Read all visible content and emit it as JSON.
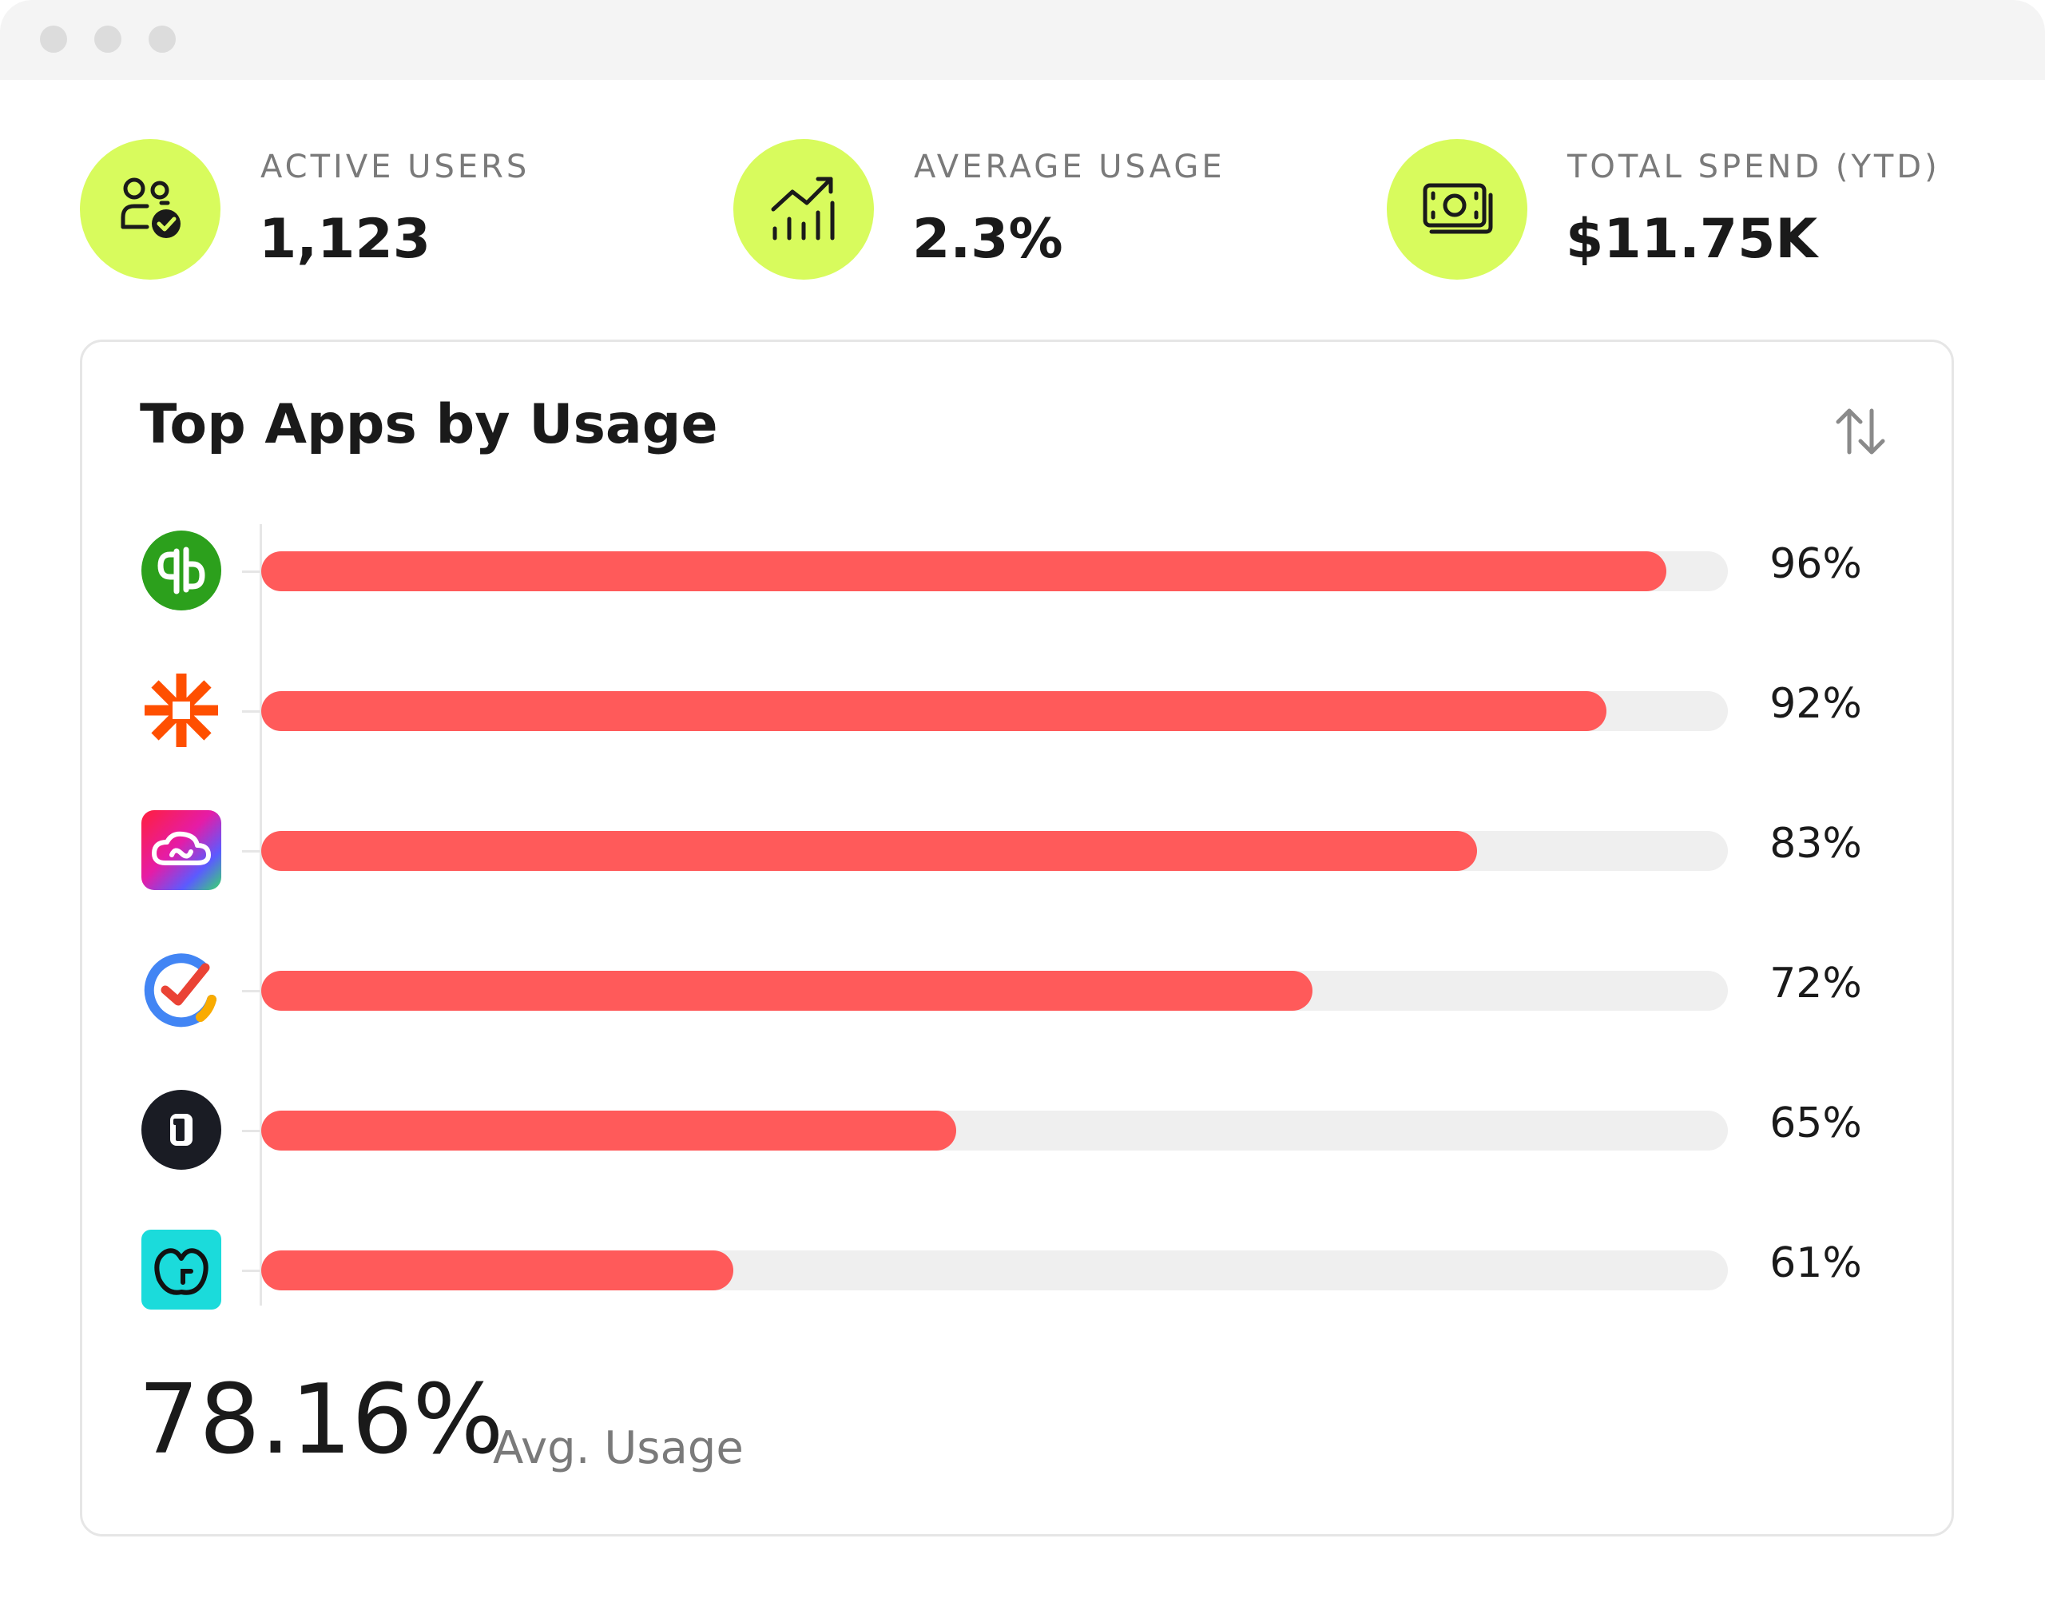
{
  "stats": [
    {
      "label": "ACTIVE USERS",
      "value": "1,123",
      "icon": "users-check-icon"
    },
    {
      "label": "AVERAGE USAGE",
      "value": "2.3%",
      "icon": "chart-trend-up-icon"
    },
    {
      "label": "TOTAL SPEND (YTD)",
      "value": "$11.75K",
      "icon": "cash-icon"
    }
  ],
  "card": {
    "title": "Top Apps by Usage",
    "sort_icon": "sort-arrows-icon"
  },
  "apps": [
    {
      "logo": "quickbooks-logo-icon",
      "usage": 0.96,
      "label": "96%"
    },
    {
      "logo": "zapier-logo-icon",
      "usage": 0.92,
      "label": "92%"
    },
    {
      "logo": "creative-cloud-logo-icon",
      "usage": 0.83,
      "label": "83%"
    },
    {
      "logo": "clockify-logo-icon",
      "usage": 0.72,
      "label": "72%"
    },
    {
      "logo": "onepassword-logo-icon",
      "usage": 0.65,
      "label": "65%"
    },
    {
      "logo": "godaddy-logo-icon",
      "usage": 0.61,
      "label": "61%"
    }
  ],
  "summary": {
    "value": "78.16%",
    "label": "Avg. Usage"
  },
  "colors": {
    "accent": "#d8fb5d",
    "bar": "#ff5a5a",
    "track": "#efefef"
  }
}
